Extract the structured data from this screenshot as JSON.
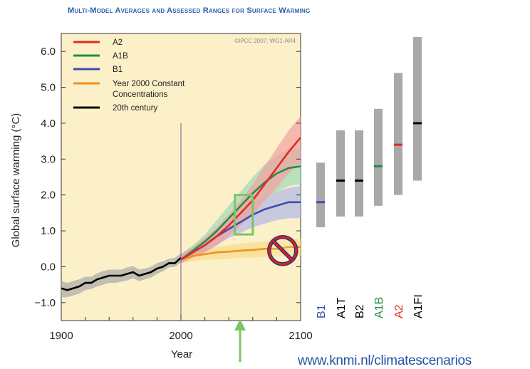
{
  "header": {
    "title": "Multi-Model Averages and Assessed Ranges for Surface Warming"
  },
  "credit": "©IPCC 2007: WG1-AR4",
  "footer": {
    "url": "www.knmi.nl/climatescenarios"
  },
  "chart_data": {
    "type": "line",
    "title": "Multi-Model Averages and Assessed Ranges for Surface Warming",
    "xlabel": "Year",
    "ylabel": "Global surface warming (°C)",
    "xlim": [
      1900,
      2100
    ],
    "ylim": [
      -1.5,
      6.5
    ],
    "xticks": [
      1900,
      2000,
      2100
    ],
    "yticks": [
      -1.0,
      0.0,
      1.0,
      2.0,
      3.0,
      4.0,
      5.0,
      6.0
    ],
    "ytick_labels": [
      "−1.0",
      "0.0",
      "1.0",
      "2.0",
      "3.0",
      "4.0",
      "5.0",
      "6.0"
    ],
    "legend_placement": "top-left",
    "grid": false,
    "series": [
      {
        "name": "A2",
        "color": "#e32a22",
        "band_color": "#f2a0a0",
        "x": [
          2000,
          2010,
          2020,
          2030,
          2040,
          2050,
          2060,
          2070,
          2080,
          2090,
          2100
        ],
        "y": [
          0.2,
          0.4,
          0.6,
          0.85,
          1.15,
          1.5,
          1.85,
          2.3,
          2.75,
          3.2,
          3.6
        ],
        "lower": [
          0.1,
          0.25,
          0.4,
          0.6,
          0.85,
          1.15,
          1.45,
          1.85,
          2.2,
          2.6,
          2.9
        ],
        "upper": [
          0.35,
          0.55,
          0.8,
          1.1,
          1.45,
          1.85,
          2.3,
          2.8,
          3.3,
          3.8,
          4.2
        ]
      },
      {
        "name": "A1B",
        "color": "#1f8f44",
        "band_color": "#9fd8b8",
        "x": [
          2000,
          2010,
          2020,
          2030,
          2040,
          2050,
          2060,
          2070,
          2080,
          2090,
          2100
        ],
        "y": [
          0.2,
          0.45,
          0.7,
          1.0,
          1.35,
          1.7,
          2.05,
          2.35,
          2.6,
          2.75,
          2.8
        ],
        "lower": [
          0.1,
          0.3,
          0.5,
          0.75,
          1.05,
          1.35,
          1.65,
          1.9,
          2.1,
          2.25,
          2.3
        ],
        "upper": [
          0.35,
          0.6,
          0.9,
          1.3,
          1.7,
          2.1,
          2.5,
          2.85,
          3.1,
          3.25,
          3.3
        ]
      },
      {
        "name": "B1",
        "color": "#3a4fb0",
        "band_color": "#b2b8e4",
        "x": [
          2000,
          2010,
          2020,
          2030,
          2040,
          2050,
          2060,
          2070,
          2080,
          2090,
          2100
        ],
        "y": [
          0.2,
          0.4,
          0.6,
          0.85,
          1.05,
          1.25,
          1.45,
          1.6,
          1.7,
          1.8,
          1.8
        ],
        "lower": [
          0.1,
          0.25,
          0.4,
          0.6,
          0.8,
          0.95,
          1.1,
          1.2,
          1.3,
          1.35,
          1.35
        ],
        "upper": [
          0.35,
          0.55,
          0.8,
          1.05,
          1.3,
          1.55,
          1.75,
          1.95,
          2.1,
          2.2,
          2.25
        ]
      },
      {
        "name": "Year 2000 Constant Concentrations",
        "color": "#f0921e",
        "band_color": "#f7dc8c",
        "x": [
          2000,
          2010,
          2020,
          2030,
          2040,
          2050,
          2060,
          2070,
          2080,
          2090,
          2100
        ],
        "y": [
          0.2,
          0.3,
          0.35,
          0.4,
          0.42,
          0.45,
          0.47,
          0.5,
          0.5,
          0.55,
          0.55
        ],
        "lower": [
          0.1,
          0.15,
          0.2,
          0.2,
          0.22,
          0.25,
          0.25,
          0.28,
          0.28,
          0.3,
          0.3
        ],
        "upper": [
          0.3,
          0.45,
          0.5,
          0.55,
          0.6,
          0.65,
          0.68,
          0.7,
          0.72,
          0.75,
          0.78
        ]
      },
      {
        "name": "20th century",
        "color": "#000000",
        "band_color": "#a8a8a8",
        "x": [
          1900,
          1905,
          1910,
          1915,
          1920,
          1925,
          1930,
          1935,
          1940,
          1945,
          1950,
          1955,
          1960,
          1965,
          1970,
          1975,
          1980,
          1985,
          1990,
          1995,
          2000
        ],
        "y": [
          -0.6,
          -0.65,
          -0.6,
          -0.55,
          -0.45,
          -0.45,
          -0.35,
          -0.3,
          -0.25,
          -0.25,
          -0.25,
          -0.2,
          -0.15,
          -0.25,
          -0.2,
          -0.15,
          -0.05,
          0.0,
          0.1,
          0.1,
          0.25
        ],
        "lower": [
          -0.85,
          -0.85,
          -0.8,
          -0.75,
          -0.65,
          -0.62,
          -0.55,
          -0.5,
          -0.45,
          -0.45,
          -0.42,
          -0.38,
          -0.32,
          -0.4,
          -0.35,
          -0.3,
          -0.2,
          -0.12,
          -0.02,
          0.0,
          0.12
        ],
        "upper": [
          -0.4,
          -0.45,
          -0.4,
          -0.35,
          -0.28,
          -0.28,
          -0.18,
          -0.12,
          -0.08,
          -0.08,
          -0.08,
          -0.02,
          0.02,
          -0.08,
          -0.05,
          0.0,
          0.1,
          0.15,
          0.22,
          0.25,
          0.38
        ]
      }
    ],
    "scenario_ranges": [
      {
        "name": "B1",
        "best": 1.8,
        "low": 1.1,
        "high": 2.9,
        "color": "#3a4fb0"
      },
      {
        "name": "A1T",
        "best": 2.4,
        "low": 1.4,
        "high": 3.8,
        "color": "#000000"
      },
      {
        "name": "B2",
        "best": 2.4,
        "low": 1.4,
        "high": 3.8,
        "color": "#000000"
      },
      {
        "name": "A1B",
        "best": 2.8,
        "low": 1.7,
        "high": 4.4,
        "color": "#1f8f44"
      },
      {
        "name": "A2",
        "best": 3.4,
        "low": 2.0,
        "high": 5.4,
        "color": "#e32a22"
      },
      {
        "name": "A1FI",
        "best": 4.0,
        "low": 2.4,
        "high": 6.4,
        "color": "#000000"
      }
    ],
    "annotations": {
      "highlight_box_x": [
        2045,
        2060
      ],
      "highlight_box_y": [
        0.9,
        2.0
      ],
      "arrow_at_year": 2050,
      "prohibition_sign_at": [
        2085,
        0.45
      ],
      "reference_line_year": 2000
    }
  }
}
